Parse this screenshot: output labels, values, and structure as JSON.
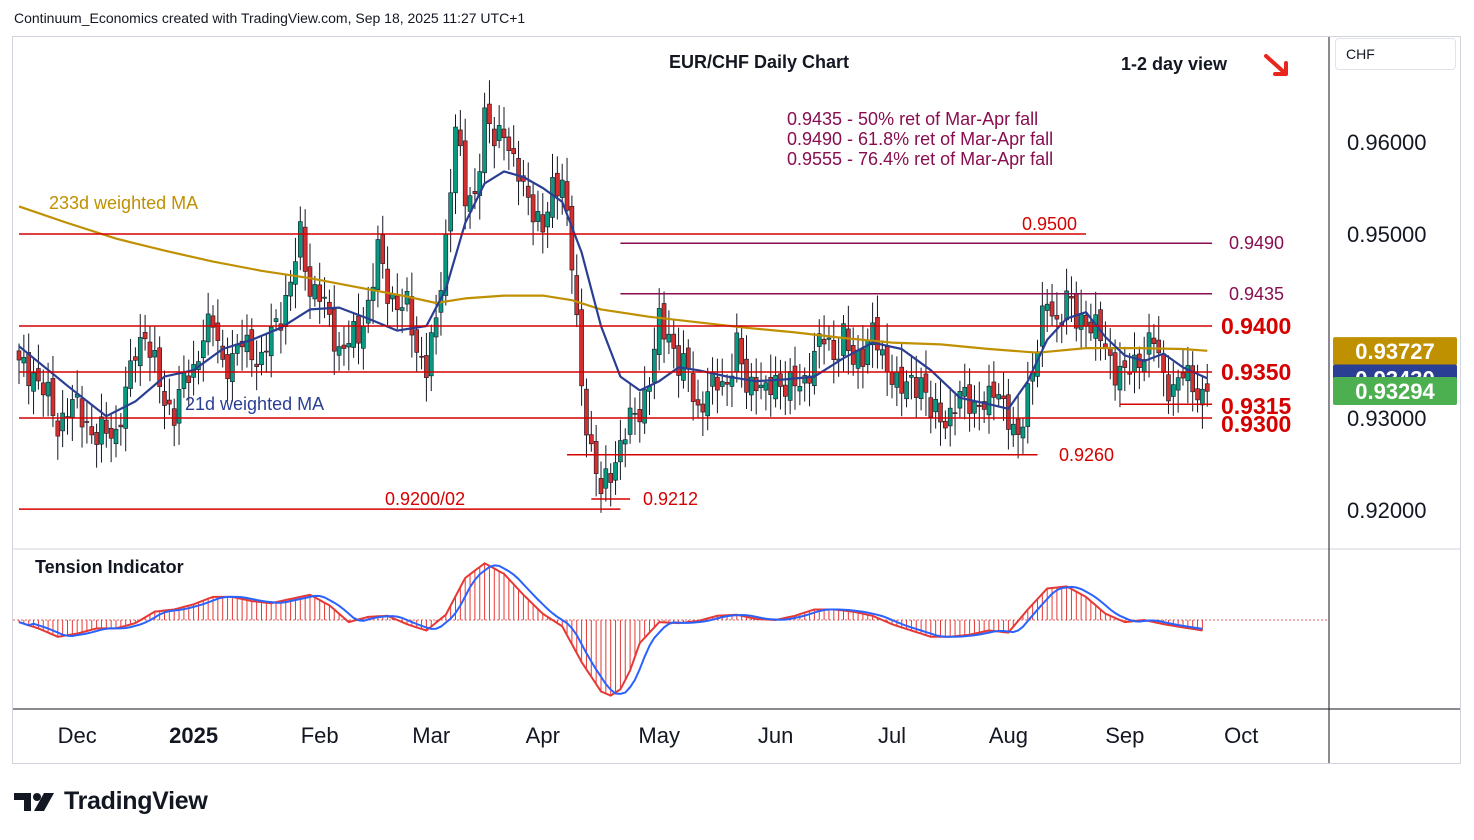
{
  "header": {
    "attribution": "Continuum_Economics created with TradingView.com, Sep 18, 2025 11:27 UTC+1"
  },
  "brand": {
    "name": "TradingView"
  },
  "currency_box": {
    "label": "CHF"
  },
  "colors": {
    "up": "#089981",
    "down": "#d32f2f",
    "candle_outline": "#131722",
    "ma21": "#2a3f94",
    "ma233": "#bf9000",
    "level": "#d50000",
    "fib": "#880e4f",
    "axis_text": "#131722",
    "grid_border": "#d1d4dc"
  },
  "icons": {
    "arrow": "down-right-arrow-icon",
    "logo": "tradingview-logo-icon"
  },
  "chart_data": {
    "type": "candlestick",
    "title": "EUR/CHF Daily Chart",
    "view": "1-2 day view",
    "annotations": {
      "fib_notes": [
        "0.9435 - 50% ret of Mar-Apr fall",
        "0.9490 - 61.8% ret of Mar-Apr fall",
        "0.9555 - 76.4% ret of Mar-Apr fall"
      ],
      "ma233_label": "233d weighted MA",
      "ma21_label": "21d weighted MA",
      "indicator_label": "Tension Indicator"
    },
    "ylim": [
      0.9155,
      0.9695
    ],
    "y_ticks": [
      {
        "value": 0.96,
        "label": "0.96000"
      },
      {
        "value": 0.95,
        "label": "0.95000"
      },
      {
        "value": 0.93,
        "label": "0.93000"
      },
      {
        "value": 0.92,
        "label": "0.92000"
      }
    ],
    "x_ticks": [
      {
        "day": 12,
        "label": "Dec"
      },
      {
        "day": 36,
        "label": "2025"
      },
      {
        "day": 62,
        "label": "Feb"
      },
      {
        "day": 85,
        "label": "Mar"
      },
      {
        "day": 108,
        "label": "Apr"
      },
      {
        "day": 132,
        "label": "May"
      },
      {
        "day": 156,
        "label": "Jun"
      },
      {
        "day": 180,
        "label": "Jul"
      },
      {
        "day": 204,
        "label": "Aug"
      },
      {
        "day": 228,
        "label": "Sep"
      },
      {
        "day": 252,
        "label": "Oct"
      }
    ],
    "levels": [
      {
        "value": 0.95,
        "label": "0.9500",
        "from_day": 0,
        "to_day": 220,
        "color": "level",
        "bold": false
      },
      {
        "value": 0.949,
        "label": "0.9490",
        "from_day": 124,
        "to_day": 246,
        "color": "fib",
        "bold": false
      },
      {
        "value": 0.9435,
        "label": "0.9435",
        "from_day": 124,
        "to_day": 246,
        "color": "fib",
        "bold": false
      },
      {
        "value": 0.94,
        "label": "0.9400",
        "from_day": 0,
        "to_day": 246,
        "color": "level",
        "bold": true
      },
      {
        "value": 0.935,
        "label": "0.9350",
        "from_day": 0,
        "to_day": 246,
        "color": "level",
        "bold": true
      },
      {
        "value": 0.9315,
        "label": "0.9315",
        "from_day": 227,
        "to_day": 246,
        "color": "level",
        "bold": true
      },
      {
        "value": 0.93,
        "label": "0.9300",
        "from_day": 0,
        "to_day": 246,
        "color": "level",
        "bold": true
      },
      {
        "value": 0.926,
        "label": "0.9260",
        "from_day": 113,
        "to_day": 210,
        "color": "level",
        "bold": false
      },
      {
        "value": 0.9212,
        "label": "0.9212",
        "from_day": 118,
        "to_day": 126,
        "color": "level",
        "bold": false
      },
      {
        "value": 0.9201,
        "label": "0.9200/02",
        "from_day": 0,
        "to_day": 124,
        "color": "level",
        "bold": false
      }
    ],
    "price_badges": [
      {
        "label": "0.93727",
        "value": 0.93727,
        "bg": "#bf9000",
        "fg": "#ffffff"
      },
      {
        "label": "0.93430",
        "value": 0.9343,
        "bg": "#2a3f94",
        "fg": "#ffffff"
      },
      {
        "label": "0.93294",
        "value": 0.93294,
        "bg": "#4caf50",
        "fg": "#ffffff"
      }
    ],
    "series_keypoints": [
      [
        0,
        0.9355
      ],
      [
        3,
        0.935
      ],
      [
        6,
        0.932
      ],
      [
        8,
        0.9292
      ],
      [
        10,
        0.931
      ],
      [
        12,
        0.9312
      ],
      [
        14,
        0.9295
      ],
      [
        16,
        0.9278
      ],
      [
        18,
        0.9285
      ],
      [
        20,
        0.9285
      ],
      [
        22,
        0.9325
      ],
      [
        24,
        0.9372
      ],
      [
        26,
        0.9395
      ],
      [
        28,
        0.9355
      ],
      [
        30,
        0.9315
      ],
      [
        32,
        0.931
      ],
      [
        34,
        0.9338
      ],
      [
        36,
        0.935
      ],
      [
        38,
        0.9395
      ],
      [
        40,
        0.94
      ],
      [
        42,
        0.936
      ],
      [
        44,
        0.9365
      ],
      [
        46,
        0.938
      ],
      [
        48,
        0.9375
      ],
      [
        50,
        0.936
      ],
      [
        52,
        0.939
      ],
      [
        54,
        0.9415
      ],
      [
        56,
        0.9445
      ],
      [
        58,
        0.9497
      ],
      [
        60,
        0.9443
      ],
      [
        62,
        0.9433
      ],
      [
        64,
        0.9405
      ],
      [
        66,
        0.9375
      ],
      [
        68,
        0.9382
      ],
      [
        70,
        0.939
      ],
      [
        72,
        0.9425
      ],
      [
        74,
        0.948
      ],
      [
        76,
        0.9438
      ],
      [
        78,
        0.9426
      ],
      [
        80,
        0.9418
      ],
      [
        82,
        0.9375
      ],
      [
        84,
        0.9358
      ],
      [
        86,
        0.94
      ],
      [
        88,
        0.9495
      ],
      [
        90,
        0.962
      ],
      [
        92,
        0.9535
      ],
      [
        94,
        0.9545
      ],
      [
        96,
        0.9625
      ],
      [
        98,
        0.96
      ],
      [
        100,
        0.962
      ],
      [
        102,
        0.9572
      ],
      [
        104,
        0.955
      ],
      [
        106,
        0.9532
      ],
      [
        108,
        0.9498
      ],
      [
        110,
        0.955
      ],
      [
        112,
        0.9565
      ],
      [
        114,
        0.9465
      ],
      [
        116,
        0.9335
      ],
      [
        118,
        0.9265
      ],
      [
        120,
        0.9215
      ],
      [
        122,
        0.9245
      ],
      [
        124,
        0.927
      ],
      [
        126,
        0.9295
      ],
      [
        128,
        0.9312
      ],
      [
        130,
        0.934
      ],
      [
        132,
        0.9402
      ],
      [
        134,
        0.9395
      ],
      [
        136,
        0.9355
      ],
      [
        138,
        0.935
      ],
      [
        140,
        0.931
      ],
      [
        142,
        0.9325
      ],
      [
        144,
        0.934
      ],
      [
        146,
        0.934
      ],
      [
        148,
        0.9375
      ],
      [
        150,
        0.9335
      ],
      [
        152,
        0.9345
      ],
      [
        154,
        0.9322
      ],
      [
        156,
        0.9342
      ],
      [
        158,
        0.9338
      ],
      [
        160,
        0.9332
      ],
      [
        162,
        0.934
      ],
      [
        164,
        0.9372
      ],
      [
        166,
        0.9385
      ],
      [
        168,
        0.937
      ],
      [
        170,
        0.939
      ],
      [
        172,
        0.9355
      ],
      [
        174,
        0.9375
      ],
      [
        176,
        0.9395
      ],
      [
        178,
        0.936
      ],
      [
        180,
        0.9352
      ],
      [
        182,
        0.933
      ],
      [
        184,
        0.9335
      ],
      [
        186,
        0.9345
      ],
      [
        188,
        0.9305
      ],
      [
        190,
        0.93
      ],
      [
        192,
        0.9305
      ],
      [
        194,
        0.932
      ],
      [
        196,
        0.932
      ],
      [
        198,
        0.9315
      ],
      [
        200,
        0.9315
      ],
      [
        202,
        0.9335
      ],
      [
        204,
        0.93
      ],
      [
        206,
        0.9268
      ],
      [
        208,
        0.9335
      ],
      [
        210,
        0.938
      ],
      [
        212,
        0.9425
      ],
      [
        214,
        0.9405
      ],
      [
        216,
        0.943
      ],
      [
        218,
        0.9405
      ],
      [
        220,
        0.941
      ],
      [
        222,
        0.9395
      ],
      [
        224,
        0.9375
      ],
      [
        226,
        0.9355
      ],
      [
        228,
        0.9345
      ],
      [
        230,
        0.9358
      ],
      [
        232,
        0.9375
      ],
      [
        234,
        0.9383
      ],
      [
        236,
        0.9345
      ],
      [
        238,
        0.9332
      ],
      [
        240,
        0.9345
      ],
      [
        242,
        0.934
      ],
      [
        244,
        0.9322
      ],
      [
        245,
        0.9329
      ]
    ],
    "ma21": [
      [
        0,
        0.9378
      ],
      [
        10,
        0.9335
      ],
      [
        18,
        0.9302
      ],
      [
        24,
        0.9318
      ],
      [
        30,
        0.9345
      ],
      [
        36,
        0.9352
      ],
      [
        42,
        0.9375
      ],
      [
        48,
        0.9385
      ],
      [
        54,
        0.9398
      ],
      [
        60,
        0.9418
      ],
      [
        66,
        0.942
      ],
      [
        72,
        0.9408
      ],
      [
        78,
        0.9395
      ],
      [
        84,
        0.94
      ],
      [
        88,
        0.944
      ],
      [
        92,
        0.9512
      ],
      [
        96,
        0.9555
      ],
      [
        100,
        0.9568
      ],
      [
        104,
        0.9562
      ],
      [
        108,
        0.955
      ],
      [
        112,
        0.9535
      ],
      [
        116,
        0.948
      ],
      [
        120,
        0.94
      ],
      [
        124,
        0.9345
      ],
      [
        128,
        0.933
      ],
      [
        132,
        0.934
      ],
      [
        136,
        0.9355
      ],
      [
        140,
        0.9352
      ],
      [
        146,
        0.9345
      ],
      [
        152,
        0.934
      ],
      [
        158,
        0.9342
      ],
      [
        164,
        0.9345
      ],
      [
        170,
        0.9365
      ],
      [
        176,
        0.9382
      ],
      [
        182,
        0.9375
      ],
      [
        188,
        0.9352
      ],
      [
        194,
        0.9322
      ],
      [
        200,
        0.9315
      ],
      [
        204,
        0.931
      ],
      [
        208,
        0.934
      ],
      [
        212,
        0.9385
      ],
      [
        216,
        0.9408
      ],
      [
        220,
        0.9415
      ],
      [
        224,
        0.9388
      ],
      [
        228,
        0.9368
      ],
      [
        232,
        0.9362
      ],
      [
        236,
        0.937
      ],
      [
        240,
        0.9355
      ],
      [
        245,
        0.9343
      ]
    ],
    "ma233": [
      [
        0,
        0.953
      ],
      [
        10,
        0.9512
      ],
      [
        20,
        0.9495
      ],
      [
        30,
        0.9482
      ],
      [
        40,
        0.947
      ],
      [
        50,
        0.946
      ],
      [
        60,
        0.9452
      ],
      [
        70,
        0.9442
      ],
      [
        80,
        0.9432
      ],
      [
        86,
        0.9425
      ],
      [
        92,
        0.943
      ],
      [
        100,
        0.9433
      ],
      [
        108,
        0.9433
      ],
      [
        114,
        0.9428
      ],
      [
        120,
        0.9418
      ],
      [
        130,
        0.941
      ],
      [
        140,
        0.9404
      ],
      [
        150,
        0.9398
      ],
      [
        160,
        0.9393
      ],
      [
        170,
        0.9387
      ],
      [
        180,
        0.9382
      ],
      [
        190,
        0.938
      ],
      [
        200,
        0.9375
      ],
      [
        210,
        0.9371
      ],
      [
        220,
        0.9376
      ],
      [
        230,
        0.9376
      ],
      [
        240,
        0.9375
      ],
      [
        245,
        0.9373
      ]
    ],
    "tension_keypoints": [
      [
        0,
        -2
      ],
      [
        4,
        -8
      ],
      [
        8,
        -16
      ],
      [
        12,
        -13
      ],
      [
        16,
        -8
      ],
      [
        20,
        -8
      ],
      [
        24,
        -3
      ],
      [
        28,
        8
      ],
      [
        32,
        10
      ],
      [
        36,
        15
      ],
      [
        40,
        22
      ],
      [
        44,
        22
      ],
      [
        48,
        18
      ],
      [
        52,
        16
      ],
      [
        56,
        20
      ],
      [
        60,
        24
      ],
      [
        64,
        14
      ],
      [
        68,
        -2
      ],
      [
        72,
        3
      ],
      [
        76,
        4
      ],
      [
        80,
        -4
      ],
      [
        84,
        -10
      ],
      [
        88,
        5
      ],
      [
        92,
        40
      ],
      [
        96,
        54
      ],
      [
        100,
        44
      ],
      [
        104,
        24
      ],
      [
        108,
        6
      ],
      [
        112,
        -6
      ],
      [
        116,
        -40
      ],
      [
        120,
        -68
      ],
      [
        122,
        -72
      ],
      [
        124,
        -66
      ],
      [
        126,
        -48
      ],
      [
        128,
        -22
      ],
      [
        132,
        -2
      ],
      [
        136,
        -3
      ],
      [
        140,
        -1
      ],
      [
        144,
        4
      ],
      [
        148,
        5
      ],
      [
        152,
        1
      ],
      [
        156,
        0
      ],
      [
        160,
        4
      ],
      [
        164,
        10
      ],
      [
        168,
        10
      ],
      [
        172,
        8
      ],
      [
        176,
        4
      ],
      [
        180,
        -4
      ],
      [
        184,
        -10
      ],
      [
        188,
        -16
      ],
      [
        192,
        -16
      ],
      [
        196,
        -14
      ],
      [
        200,
        -10
      ],
      [
        204,
        -12
      ],
      [
        208,
        10
      ],
      [
        212,
        30
      ],
      [
        216,
        32
      ],
      [
        220,
        22
      ],
      [
        224,
        6
      ],
      [
        228,
        -2
      ],
      [
        232,
        0
      ],
      [
        236,
        -4
      ],
      [
        240,
        -7
      ],
      [
        244,
        -10
      ]
    ]
  }
}
